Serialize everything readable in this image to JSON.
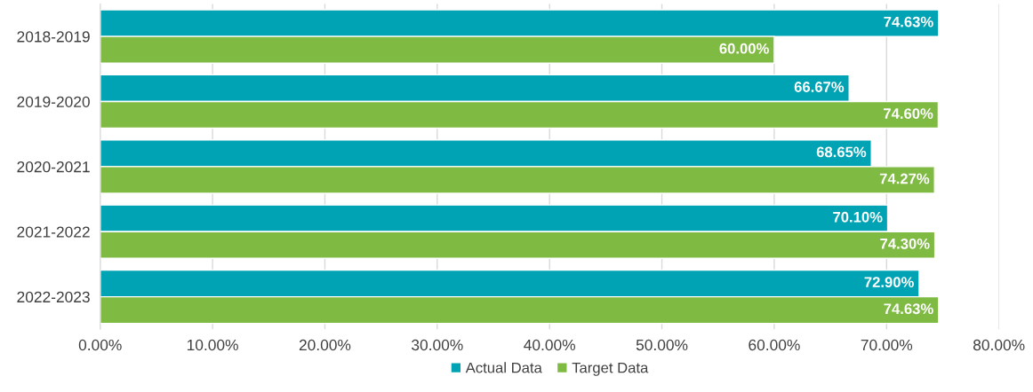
{
  "chart_data": {
    "type": "bar",
    "orientation": "horizontal",
    "categories": [
      "2018-2019",
      "2019-2020",
      "2020-2021",
      "2021-2022",
      "2022-2023"
    ],
    "series": [
      {
        "name": "Actual Data",
        "color": "#00a3b4",
        "values": [
          74.63,
          66.67,
          68.65,
          70.1,
          72.9
        ],
        "value_labels": [
          "74.63%",
          "66.67%",
          "68.65%",
          "70.10%",
          "72.90%"
        ]
      },
      {
        "name": "Target Data",
        "color": "#7fba42",
        "values": [
          60.0,
          74.6,
          74.27,
          74.3,
          74.63
        ],
        "value_labels": [
          "60.00%",
          "74.60%",
          "74.27%",
          "74.30%",
          "74.63%"
        ]
      }
    ],
    "xlim": [
      0,
      80
    ],
    "xticks": [
      {
        "value": 0,
        "label": "0.00%"
      },
      {
        "value": 10,
        "label": "10.00%"
      },
      {
        "value": 20,
        "label": "20.00%"
      },
      {
        "value": 30,
        "label": "30.00%"
      },
      {
        "value": 40,
        "label": "40.00%"
      },
      {
        "value": 50,
        "label": "50.00%"
      },
      {
        "value": 60,
        "label": "60.00%"
      },
      {
        "value": 70,
        "label": "70.00%"
      },
      {
        "value": 80,
        "label": "80.00%"
      }
    ],
    "grid": "x",
    "legend": "bottom"
  }
}
